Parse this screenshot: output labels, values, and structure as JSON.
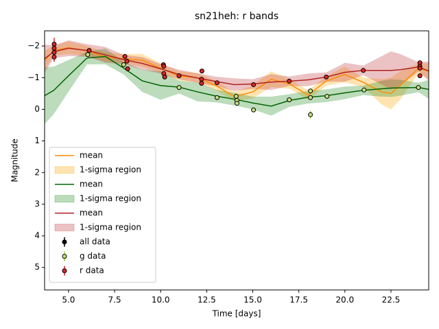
{
  "chart_data": {
    "type": "line",
    "title": "sn21heh: r bands",
    "x_label": "Time [days]",
    "y_label": "Magnitude",
    "xlim": [
      3.7,
      24.55
    ],
    "ylim": [
      -2.48,
      5.71
    ],
    "invert_y": true,
    "xticks": [
      {
        "value": 5,
        "label": "5.0"
      },
      7.5,
      {
        "value": 10,
        "label": "10.0"
      },
      12.5,
      {
        "value": 15,
        "label": "15.0"
      },
      17.5,
      {
        "value": 20,
        "label": "20.0"
      },
      22.5
    ],
    "yticks": [
      {
        "value": -2,
        "label": "−2"
      },
      {
        "value": -1,
        "label": "−1"
      },
      0,
      1,
      2,
      3,
      4,
      5
    ],
    "legend": "lower left",
    "x": [
      3.7,
      4.2,
      5,
      6,
      7,
      8,
      9,
      10,
      11,
      12,
      13,
      14,
      15,
      16,
      17,
      18,
      19,
      20,
      21,
      22,
      22.5,
      23,
      24,
      24.55
    ],
    "series": [
      {
        "name": "mean",
        "kind": "line",
        "color": "#ff8c00",
        "values": [
          -1.55,
          -1.85,
          -1.95,
          -1.85,
          -1.65,
          -1.6,
          -1.55,
          -1.3,
          -1.05,
          -1.0,
          -0.75,
          -0.4,
          -0.55,
          -0.95,
          -0.8,
          -0.45,
          -0.9,
          -1.1,
          -0.85,
          -0.55,
          -0.5,
          -0.75,
          -1.3,
          -1.2
        ]
      },
      {
        "name": "1-sigma region",
        "kind": "band",
        "color": "#ffa500",
        "lower": [
          -1.85,
          -2.0,
          -2.15,
          -2.0,
          -1.8,
          -1.75,
          -1.75,
          -1.45,
          -1.2,
          -1.15,
          -0.9,
          -0.55,
          -0.75,
          -1.2,
          -0.95,
          -0.6,
          -1.05,
          -1.35,
          -1.0,
          -0.95,
          -1.0,
          -1.2,
          -1.45,
          -1.45
        ],
        "upper": [
          -1.25,
          -1.7,
          -1.75,
          -1.7,
          -1.5,
          -1.45,
          -1.35,
          -1.15,
          -0.9,
          -0.85,
          -0.6,
          -0.25,
          -0.35,
          -0.7,
          -0.65,
          -0.3,
          -0.75,
          -0.85,
          -0.7,
          -0.15,
          0.0,
          -0.3,
          -1.15,
          -0.95
        ]
      },
      {
        "name": "mean",
        "kind": "line",
        "color": "#006400",
        "values": [
          -0.43,
          -0.6,
          -1.06,
          -1.62,
          -1.67,
          -1.3,
          -0.9,
          -0.75,
          -0.7,
          -0.55,
          -0.42,
          -0.32,
          -0.2,
          -0.1,
          -0.28,
          -0.38,
          -0.43,
          -0.52,
          -0.6,
          -0.65,
          -0.67,
          -0.68,
          -0.69,
          -0.63
        ]
      },
      {
        "name": "1-sigma region",
        "kind": "band",
        "color": "#228b22",
        "lower": [
          -1.33,
          -1.35,
          -1.56,
          -1.82,
          -1.92,
          -1.5,
          -1.25,
          -1.2,
          -0.9,
          -0.85,
          -0.62,
          -0.52,
          -0.4,
          -0.4,
          -0.48,
          -0.58,
          -0.63,
          -0.72,
          -0.75,
          -0.9,
          -0.95,
          -0.93,
          -0.84,
          -0.93
        ],
        "upper": [
          0.47,
          0.15,
          -0.56,
          -1.42,
          -1.42,
          -1.1,
          -0.55,
          -0.3,
          -0.5,
          -0.25,
          -0.22,
          -0.12,
          0.0,
          0.2,
          -0.08,
          -0.18,
          -0.23,
          -0.32,
          -0.45,
          -0.4,
          -0.39,
          -0.43,
          -0.54,
          -0.33
        ]
      },
      {
        "name": "mean",
        "kind": "line",
        "color": "#b22222",
        "values": [
          -1.6,
          -1.82,
          -1.93,
          -1.86,
          -1.72,
          -1.57,
          -1.45,
          -1.28,
          -1.1,
          -0.99,
          -0.88,
          -0.78,
          -0.8,
          -0.86,
          -0.89,
          -0.93,
          -1.02,
          -1.17,
          -1.23,
          -1.23,
          -1.23,
          -1.25,
          -1.34,
          -1.21
        ]
      },
      {
        "name": "1-sigma region",
        "kind": "band",
        "color": "#c0393b",
        "lower": [
          -2.05,
          -2.02,
          -2.18,
          -2.06,
          -1.97,
          -1.72,
          -1.65,
          -1.43,
          -1.25,
          -1.14,
          -1.03,
          -0.98,
          -0.95,
          -1.11,
          -1.04,
          -1.13,
          -1.17,
          -1.47,
          -1.38,
          -1.68,
          -1.83,
          -1.75,
          -1.49,
          -1.51
        ],
        "upper": [
          -1.15,
          -1.62,
          -1.68,
          -1.66,
          -1.47,
          -1.42,
          -1.25,
          -1.13,
          -0.95,
          -0.84,
          -0.73,
          -0.58,
          -0.65,
          -0.61,
          -0.74,
          -0.73,
          -0.87,
          -0.87,
          -1.08,
          -0.78,
          -0.63,
          -0.75,
          -1.19,
          -0.91
        ]
      },
      {
        "name": "all data",
        "kind": "points",
        "color": "#000000",
        "bar_color": "#000000",
        "x": [],
        "values": [],
        "errors": []
      },
      {
        "name": "g data",
        "kind": "points",
        "color": "#c5e07f",
        "bar_color": "#9acd32",
        "x": [
          6.04,
          7.99,
          11.0,
          13.06,
          14.1,
          14.14,
          14.14,
          15.04,
          16.98,
          18.13,
          18.13,
          18.13,
          19.03,
          21.04,
          23.99
        ],
        "values": [
          -1.73,
          -1.41,
          -0.69,
          -0.37,
          -0.41,
          -0.28,
          -0.19,
          0.02,
          -0.3,
          -0.58,
          -0.37,
          0.17,
          -0.41,
          -0.61,
          -0.69
        ],
        "errors": [
          0.05,
          0.05,
          0.05,
          0.05,
          0.05,
          0.05,
          0.05,
          0.05,
          0.05,
          0.05,
          0.05,
          0.12,
          0.05,
          0.05,
          0.05
        ]
      },
      {
        "name": "r data",
        "kind": "points",
        "color": "#d62728",
        "bar_color": "#d62728",
        "x": [
          4.22,
          4.22,
          4.22,
          4.22,
          6.12,
          8.06,
          8.17,
          8.21,
          10.15,
          10.17,
          10.17,
          10.22,
          11.0,
          12.24,
          12.22,
          12.22,
          13.06,
          15.04,
          16.98,
          18.99,
          21.0,
          24.07,
          24.07,
          24.07,
          24.07
        ],
        "values": [
          -2.06,
          -1.93,
          -1.8,
          -1.65,
          -1.86,
          -1.67,
          -1.52,
          -1.28,
          -1.41,
          -1.36,
          -1.13,
          -1.02,
          -1.06,
          -1.21,
          -0.95,
          -0.82,
          -0.84,
          -0.78,
          -0.89,
          -1.02,
          -1.23,
          -1.47,
          -1.36,
          -1.3,
          -1.06
        ],
        "errors": [
          0.2,
          0.1,
          0.1,
          0.15,
          0.05,
          0.05,
          0.05,
          0.05,
          0.05,
          0.05,
          0.05,
          0.05,
          0.05,
          0.05,
          0.05,
          0.05,
          0.05,
          0.05,
          0.05,
          0.05,
          0.05,
          0.05,
          0.05,
          0.05,
          0.05
        ]
      }
    ]
  }
}
